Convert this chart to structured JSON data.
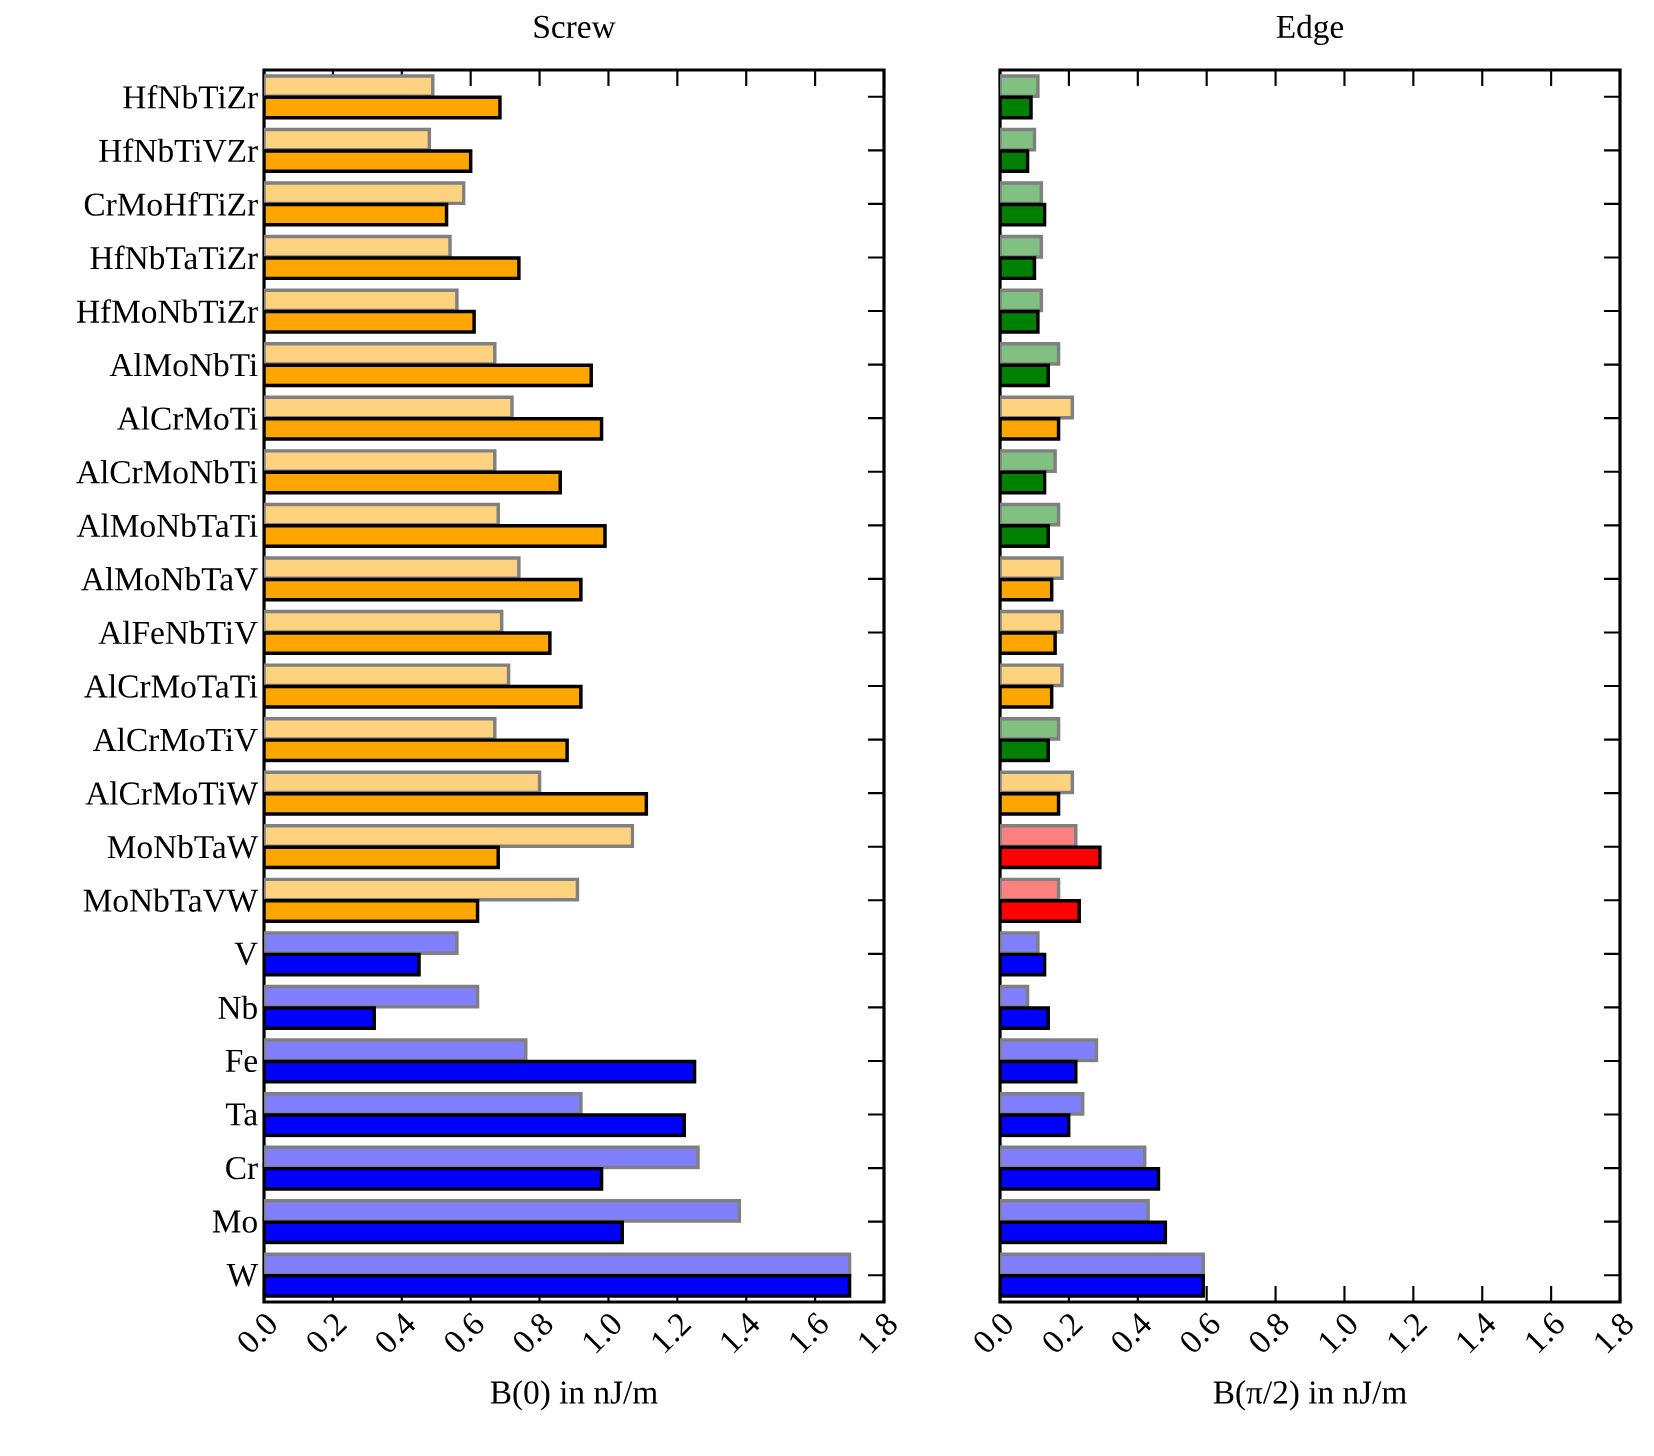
{
  "chart_data": [
    {
      "type": "bar",
      "orientation": "horizontal",
      "title": "Screw",
      "xlabel": "B(0) in nJ/m",
      "categories": [
        "HfNbTiZr",
        "HfNbTiVZr",
        "CrMoHfTiZr",
        "HfNbTaTiZr",
        "HfMoNbTiZr",
        "AlMoNbTi",
        "AlCrMoTi",
        "AlCrMoNbTi",
        "AlMoNbTaTi",
        "AlMoNbTaV",
        "AlFeNbTiV",
        "AlCrMoTaTi",
        "AlCrMoTiV",
        "AlCrMoTiW",
        "MoNbTaW",
        "MoNbTaVW",
        "V",
        "Nb",
        "Fe",
        "Ta",
        "Cr",
        "Mo",
        "W"
      ],
      "xlim": [
        0,
        1.8
      ],
      "xticks": [
        {
          "value": 0,
          "label": "0.0"
        },
        {
          "value": 0.2,
          "label": "0.2"
        },
        {
          "value": 0.4,
          "label": "0.4"
        },
        {
          "value": 0.6,
          "label": "0.6"
        },
        {
          "value": 0.8,
          "label": "0.8"
        },
        {
          "value": 1.0,
          "label": "1.0"
        },
        {
          "value": 1.2,
          "label": "1.2"
        },
        {
          "value": 1.4,
          "label": "1.4"
        },
        {
          "value": 1.6,
          "label": "1.6"
        },
        {
          "value": 1.8,
          "label": "1.8"
        }
      ],
      "series": [
        {
          "colors": [
            "#ffd280",
            "#ffd280",
            "#ffd280",
            "#ffd280",
            "#ffd280",
            "#ffd280",
            "#ffd280",
            "#ffd280",
            "#ffd280",
            "#ffd280",
            "#ffd280",
            "#ffd280",
            "#ffd280",
            "#ffd280",
            "#ffd280",
            "#ffd280",
            "#8080ff",
            "#8080ff",
            "#8080ff",
            "#8080ff",
            "#8080ff",
            "#8080ff",
            "#8080ff"
          ],
          "values": [
            0.49,
            0.48,
            0.58,
            0.54,
            0.56,
            0.67,
            0.72,
            0.67,
            0.68,
            0.74,
            0.69,
            0.71,
            0.67,
            0.8,
            1.07,
            0.91,
            0.56,
            0.62,
            0.76,
            0.92,
            1.26,
            1.38,
            1.7
          ]
        },
        {
          "colors": [
            "#ffa500",
            "#ffa500",
            "#ffa500",
            "#ffa500",
            "#ffa500",
            "#ffa500",
            "#ffa500",
            "#ffa500",
            "#ffa500",
            "#ffa500",
            "#ffa500",
            "#ffa500",
            "#ffa500",
            "#ffa500",
            "#ffa500",
            "#ffa500",
            "#0000ff",
            "#0000ff",
            "#0000ff",
            "#0000ff",
            "#0000ff",
            "#0000ff",
            "#0000ff"
          ],
          "values": [
            0.685,
            0.6,
            0.53,
            0.74,
            0.61,
            0.95,
            0.98,
            0.86,
            0.99,
            0.92,
            0.83,
            0.92,
            0.88,
            1.11,
            0.68,
            0.62,
            0.45,
            0.32,
            1.25,
            1.22,
            0.98,
            1.04,
            1.7
          ]
        }
      ]
    },
    {
      "type": "bar",
      "orientation": "horizontal",
      "title": "Edge",
      "xlabel": "B(π/2) in nJ/m",
      "categories": [
        null,
        null,
        null,
        null,
        null,
        null,
        null,
        null,
        null,
        null,
        null,
        null,
        null,
        null,
        null,
        null,
        null,
        null,
        null,
        null,
        null,
        null,
        null
      ],
      "xlim": [
        0,
        1.8
      ],
      "xticks": [
        {
          "value": 0,
          "label": "0.0"
        },
        {
          "value": 0.2,
          "label": "0.2"
        },
        {
          "value": 0.4,
          "label": "0.4"
        },
        {
          "value": 0.6,
          "label": "0.6"
        },
        {
          "value": 0.8,
          "label": "0.8"
        },
        {
          "value": 1.0,
          "label": "1.0"
        },
        {
          "value": 1.2,
          "label": "1.2"
        },
        {
          "value": 1.4,
          "label": "1.4"
        },
        {
          "value": 1.6,
          "label": "1.6"
        },
        {
          "value": 1.8,
          "label": "1.8"
        }
      ],
      "series": [
        {
          "colors": [
            "#80c080",
            "#80c080",
            "#80c080",
            "#80c080",
            "#80c080",
            "#80c080",
            "#ffd280",
            "#80c080",
            "#80c080",
            "#ffd280",
            "#ffd280",
            "#ffd280",
            "#80c080",
            "#ffd280",
            "#ff8080",
            "#ff8080",
            "#8080ff",
            "#8080ff",
            "#8080ff",
            "#8080ff",
            "#8080ff",
            "#8080ff",
            "#8080ff"
          ],
          "values": [
            0.11,
            0.1,
            0.12,
            0.12,
            0.12,
            0.17,
            0.21,
            0.16,
            0.17,
            0.18,
            0.18,
            0.18,
            0.17,
            0.21,
            0.22,
            0.17,
            0.11,
            0.08,
            0.28,
            0.24,
            0.42,
            0.43,
            0.59
          ]
        },
        {
          "colors": [
            "#008000",
            "#008000",
            "#008000",
            "#008000",
            "#008000",
            "#008000",
            "#ffa500",
            "#008000",
            "#008000",
            "#ffa500",
            "#ffa500",
            "#ffa500",
            "#008000",
            "#ffa500",
            "#ff0000",
            "#ff0000",
            "#0000ff",
            "#0000ff",
            "#0000ff",
            "#0000ff",
            "#0000ff",
            "#0000ff",
            "#0000ff"
          ],
          "values": [
            0.09,
            0.08,
            0.13,
            0.1,
            0.11,
            0.14,
            0.17,
            0.13,
            0.14,
            0.15,
            0.16,
            0.15,
            0.14,
            0.17,
            0.29,
            0.23,
            0.13,
            0.14,
            0.22,
            0.2,
            0.46,
            0.48,
            0.59
          ]
        }
      ]
    }
  ]
}
